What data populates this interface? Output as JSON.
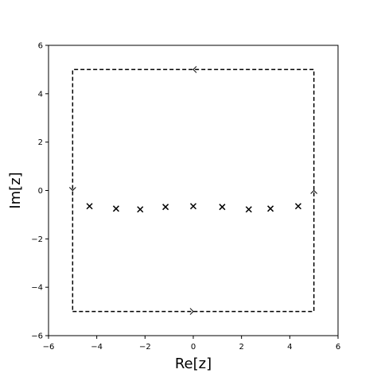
{
  "chart_data": {
    "type": "scatter",
    "title": "",
    "xlabel": "Re[z]",
    "ylabel": "Im[z]",
    "xlim": [
      -6,
      6
    ],
    "ylim": [
      -6,
      6
    ],
    "xticks": [
      -6,
      -4,
      -2,
      0,
      2,
      4,
      6
    ],
    "yticks": [
      -6,
      -4,
      -2,
      0,
      2,
      4,
      6
    ],
    "xtick_labels": [
      "−6",
      "−4",
      "−2",
      "0",
      "2",
      "4",
      "6"
    ],
    "ytick_labels": [
      "−6",
      "−4",
      "−2",
      "0",
      "2",
      "4",
      "6"
    ],
    "grid": false,
    "marker": "x",
    "points": [
      {
        "x": -4.3,
        "y": -0.65
      },
      {
        "x": -3.2,
        "y": -0.75
      },
      {
        "x": -2.2,
        "y": -0.78
      },
      {
        "x": -1.15,
        "y": -0.68
      },
      {
        "x": 0.0,
        "y": -0.65
      },
      {
        "x": 1.2,
        "y": -0.68
      },
      {
        "x": 2.3,
        "y": -0.78
      },
      {
        "x": 3.2,
        "y": -0.75
      },
      {
        "x": 4.35,
        "y": -0.65
      }
    ],
    "contour": {
      "style": "dashed",
      "vertices": [
        [
          -5,
          -5
        ],
        [
          5,
          -5
        ],
        [
          5,
          5
        ],
        [
          -5,
          5
        ]
      ],
      "direction": "counterclockwise",
      "arrows": [
        {
          "x": 0,
          "y": -5,
          "direction": "right"
        },
        {
          "x": 5,
          "y": 0,
          "direction": "up"
        },
        {
          "x": 0,
          "y": 5,
          "direction": "left"
        },
        {
          "x": -5,
          "y": 0,
          "direction": "down"
        }
      ]
    },
    "colors": {
      "line": "#000000",
      "background": "#ffffff"
    }
  }
}
